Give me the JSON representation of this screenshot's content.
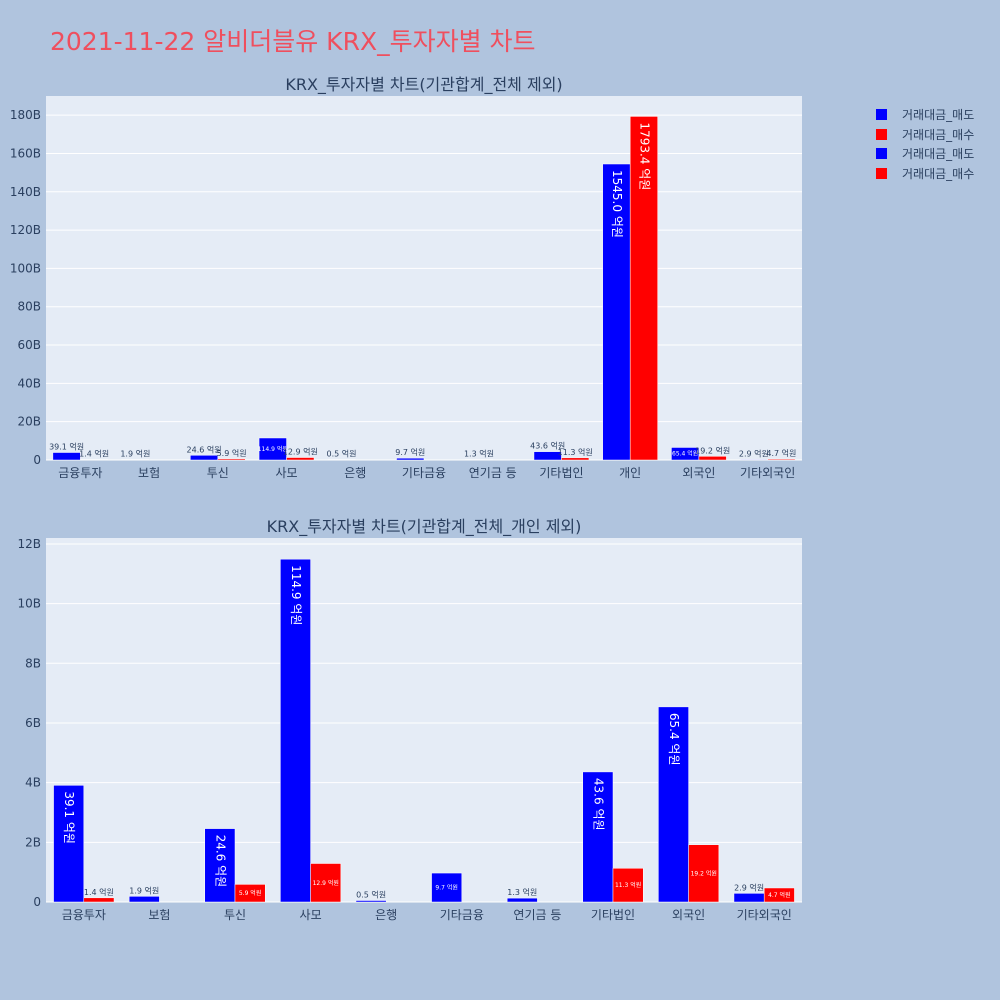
{
  "page": {
    "title": "2021-11-22 알비더블유 KRX_투자자별 차트",
    "title_color": "#ef4f5e",
    "background": "#b0c4de"
  },
  "legend": [
    {
      "label": "거래대금_매도",
      "color": "#0000ff"
    },
    {
      "label": "거래대금_매수",
      "color": "#ff0000"
    },
    {
      "label": "거래대금_매도",
      "color": "#0000ff"
    },
    {
      "label": "거래대금_매수",
      "color": "#ff0000"
    }
  ],
  "chart_data": [
    {
      "type": "bar",
      "title": "KRX_투자자별 차트(기관합계_전체 제외)",
      "categories": [
        "금융투자",
        "보험",
        "투신",
        "사모",
        "은행",
        "기타금융",
        "연기금 등",
        "기타법인",
        "개인",
        "외국인",
        "기타외국인"
      ],
      "yticks": [
        "0",
        "20B",
        "40B",
        "60B",
        "80B",
        "100B",
        "120B",
        "140B",
        "160B",
        "180B"
      ],
      "ylim": [
        0,
        190
      ],
      "yunit": "B",
      "series": [
        {
          "name": "거래대금_매도",
          "color": "#0000ff",
          "values": [
            3.91,
            0.19,
            2.46,
            11.49,
            0.05,
            0.97,
            0.13,
            4.36,
            154.5,
            6.54,
            0.29
          ],
          "labels": [
            "39.1 억원",
            "1.9 억원",
            "24.6 억원",
            "114.9 억원",
            "0.5 억원",
            "9.7 억원",
            "1.3 억원",
            "43.6 억원",
            "1545.0 억원",
            "65.4 억원",
            "2.9 억원"
          ]
        },
        {
          "name": "거래대금_매수",
          "color": "#ff0000",
          "values": [
            0.14,
            null,
            0.59,
            1.29,
            null,
            null,
            null,
            1.13,
            179.34,
            1.92,
            0.47
          ],
          "labels": [
            "1.4 억원",
            "",
            "5.9 억원",
            "12.9 억원",
            "",
            "",
            "",
            "11.3 억원",
            "1793.4 억원",
            "19.2 억원",
            "4.7 억원"
          ]
        }
      ]
    },
    {
      "type": "bar",
      "title": "KRX_투자자별 차트(기관합계_전체_개인 제외)",
      "categories": [
        "금융투자",
        "보험",
        "투신",
        "사모",
        "은행",
        "기타금융",
        "연기금 등",
        "기타법인",
        "외국인",
        "기타외국인"
      ],
      "yticks": [
        "0",
        "2B",
        "4B",
        "6B",
        "8B",
        "10B",
        "12B"
      ],
      "ylim": [
        0,
        12.2
      ],
      "yunit": "B",
      "series": [
        {
          "name": "거래대금_매도",
          "color": "#0000ff",
          "values": [
            3.91,
            0.19,
            2.46,
            11.49,
            0.05,
            0.97,
            0.13,
            4.36,
            6.54,
            0.29
          ],
          "labels": [
            "39.1 억원",
            "1.9 억원",
            "24.6 억원",
            "114.9 억원",
            "0.5 억원",
            "9.7 억원",
            "1.3 억원",
            "43.6 억원",
            "65.4 억원",
            "2.9 억원"
          ]
        },
        {
          "name": "거래대금_매수",
          "color": "#ff0000",
          "values": [
            0.14,
            null,
            0.59,
            1.29,
            null,
            null,
            null,
            1.13,
            1.92,
            0.47
          ],
          "labels": [
            "1.4 억원",
            "",
            "5.9 억원",
            "12.9 억원",
            "",
            "",
            "",
            "11.3 억원",
            "19.2 억원",
            "4.7 억원"
          ]
        }
      ]
    }
  ]
}
